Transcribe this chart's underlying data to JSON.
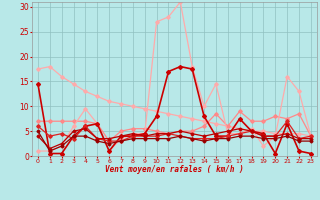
{
  "xlabel": "Vent moyen/en rafales ( km/h )",
  "x_ticks": [
    0,
    1,
    2,
    3,
    4,
    5,
    6,
    7,
    8,
    9,
    10,
    11,
    12,
    13,
    14,
    15,
    16,
    17,
    18,
    19,
    20,
    21,
    22,
    23
  ],
  "ylim": [
    0,
    31
  ],
  "yticks": [
    0,
    5,
    10,
    15,
    20,
    25,
    30
  ],
  "background_color": "#b8e8e8",
  "grid_color": "#90c0c0",
  "series": [
    {
      "y": [
        17.5,
        18.0,
        16.0,
        14.5,
        13.0,
        12.0,
        11.0,
        10.5,
        10.0,
        9.5,
        9.0,
        8.5,
        8.0,
        7.5,
        7.0,
        6.5,
        6.0,
        5.5,
        5.0,
        5.0,
        4.5,
        4.5,
        4.5,
        4.0
      ],
      "color": "#ffaaaa",
      "lw": 0.9,
      "marker": "D",
      "ms": 1.8
    },
    {
      "y": [
        7.0,
        7.0,
        7.0,
        7.0,
        7.0,
        6.5,
        3.0,
        5.0,
        5.5,
        5.5,
        5.0,
        4.5,
        5.0,
        5.0,
        6.0,
        8.5,
        6.0,
        9.0,
        7.0,
        7.0,
        8.0,
        7.5,
        8.5,
        4.0
      ],
      "color": "#ff8888",
      "lw": 0.9,
      "marker": "D",
      "ms": 1.8
    },
    {
      "y": [
        1.0,
        1.0,
        2.0,
        6.0,
        9.5,
        6.5,
        1.0,
        3.5,
        4.5,
        4.5,
        27.0,
        28.0,
        31.0,
        18.0,
        10.0,
        14.5,
        4.5,
        4.5,
        5.5,
        2.0,
        4.0,
        16.0,
        13.0,
        4.0
      ],
      "color": "#ffaaaa",
      "lw": 0.9,
      "marker": "D",
      "ms": 1.8
    },
    {
      "y": [
        14.5,
        0.5,
        0.5,
        4.0,
        6.0,
        6.5,
        1.0,
        4.0,
        4.0,
        4.5,
        8.0,
        17.0,
        18.0,
        17.5,
        8.0,
        4.0,
        4.0,
        7.5,
        5.0,
        4.5,
        0.5,
        6.5,
        1.0,
        0.5
      ],
      "color": "#cc0000",
      "lw": 1.2,
      "marker": "D",
      "ms": 2.0
    },
    {
      "y": [
        6.0,
        4.0,
        4.5,
        3.5,
        6.0,
        3.5,
        3.0,
        3.0,
        4.0,
        4.0,
        4.0,
        4.5,
        4.0,
        3.5,
        3.5,
        3.5,
        4.0,
        4.5,
        5.0,
        4.0,
        4.0,
        7.0,
        3.5,
        4.0
      ],
      "color": "#dd2222",
      "lw": 0.9,
      "marker": "D",
      "ms": 1.8
    },
    {
      "y": [
        4.0,
        1.5,
        2.5,
        5.0,
        5.5,
        3.5,
        3.5,
        4.0,
        4.5,
        4.0,
        4.5,
        4.5,
        5.0,
        4.5,
        4.0,
        4.5,
        5.0,
        5.5,
        5.0,
        4.0,
        4.0,
        4.5,
        3.5,
        3.5
      ],
      "color": "#bb0000",
      "lw": 0.9,
      "marker": "D",
      "ms": 1.5
    },
    {
      "y": [
        5.0,
        1.0,
        2.0,
        4.0,
        4.0,
        3.0,
        2.5,
        3.0,
        3.5,
        3.5,
        3.5,
        3.5,
        4.0,
        3.5,
        3.0,
        3.5,
        3.5,
        4.0,
        4.0,
        3.5,
        3.5,
        4.0,
        3.0,
        3.0
      ],
      "color": "#990000",
      "lw": 0.9,
      "marker": "D",
      "ms": 1.5
    }
  ]
}
